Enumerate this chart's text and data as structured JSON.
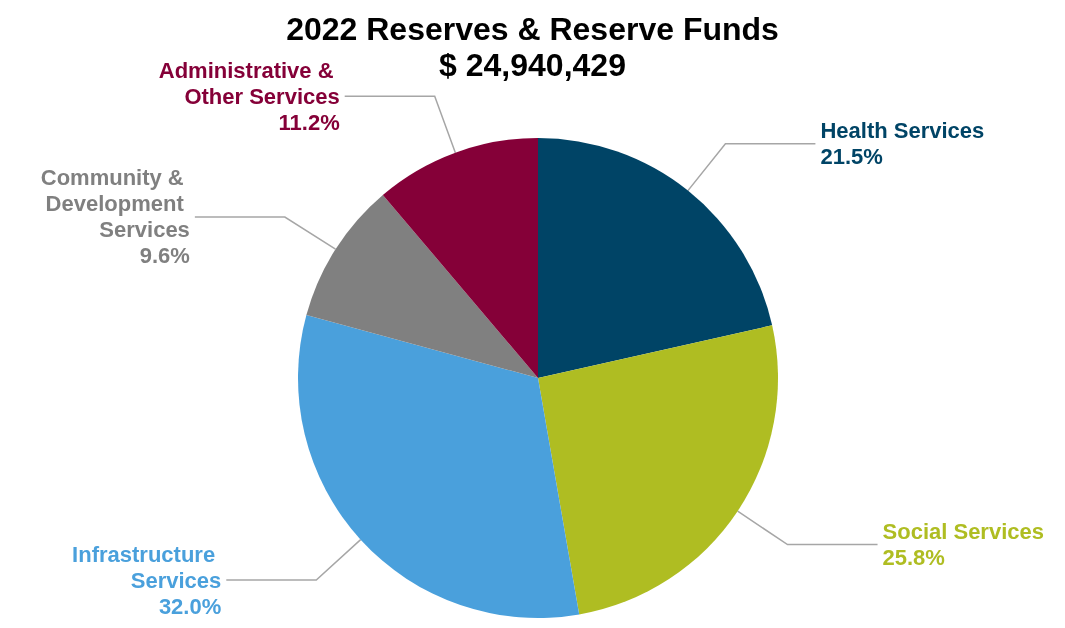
{
  "chart_data": {
    "type": "pie",
    "title": "2022 Reserves & Reserve Funds",
    "subtitle": "$ 24,940,429",
    "categories": [
      "Health Services",
      "Social Services",
      "Infrastructure Services",
      "Community & Development Services",
      "Administrative & Other Services"
    ],
    "values": [
      21.5,
      25.8,
      32.0,
      9.6,
      11.2
    ],
    "value_labels": [
      "21.5%",
      "25.8%",
      "32.0%",
      "9.6%",
      "11.2%"
    ],
    "colors": [
      "#004466",
      "#afbd22",
      "#4aa0dc",
      "#808080",
      "#850038"
    ],
    "legend": false
  }
}
